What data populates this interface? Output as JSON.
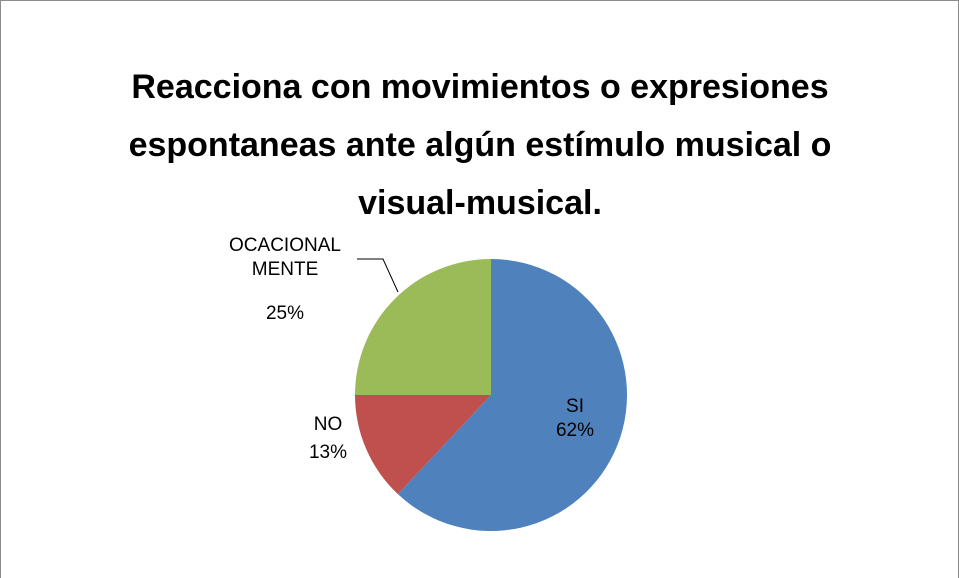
{
  "chart_data": {
    "type": "pie",
    "title": "Reacciona con movimientos o expresiones espontaneas ante algún estímulo musical o visual-musical.",
    "categories": [
      "SI",
      "NO",
      "OCACIONAL MENTE"
    ],
    "values": [
      62,
      13,
      25
    ],
    "value_labels": [
      "62%",
      "13%",
      "25%"
    ],
    "colors": [
      "#4f81bd",
      "#c0504d",
      "#9bbb59"
    ]
  }
}
